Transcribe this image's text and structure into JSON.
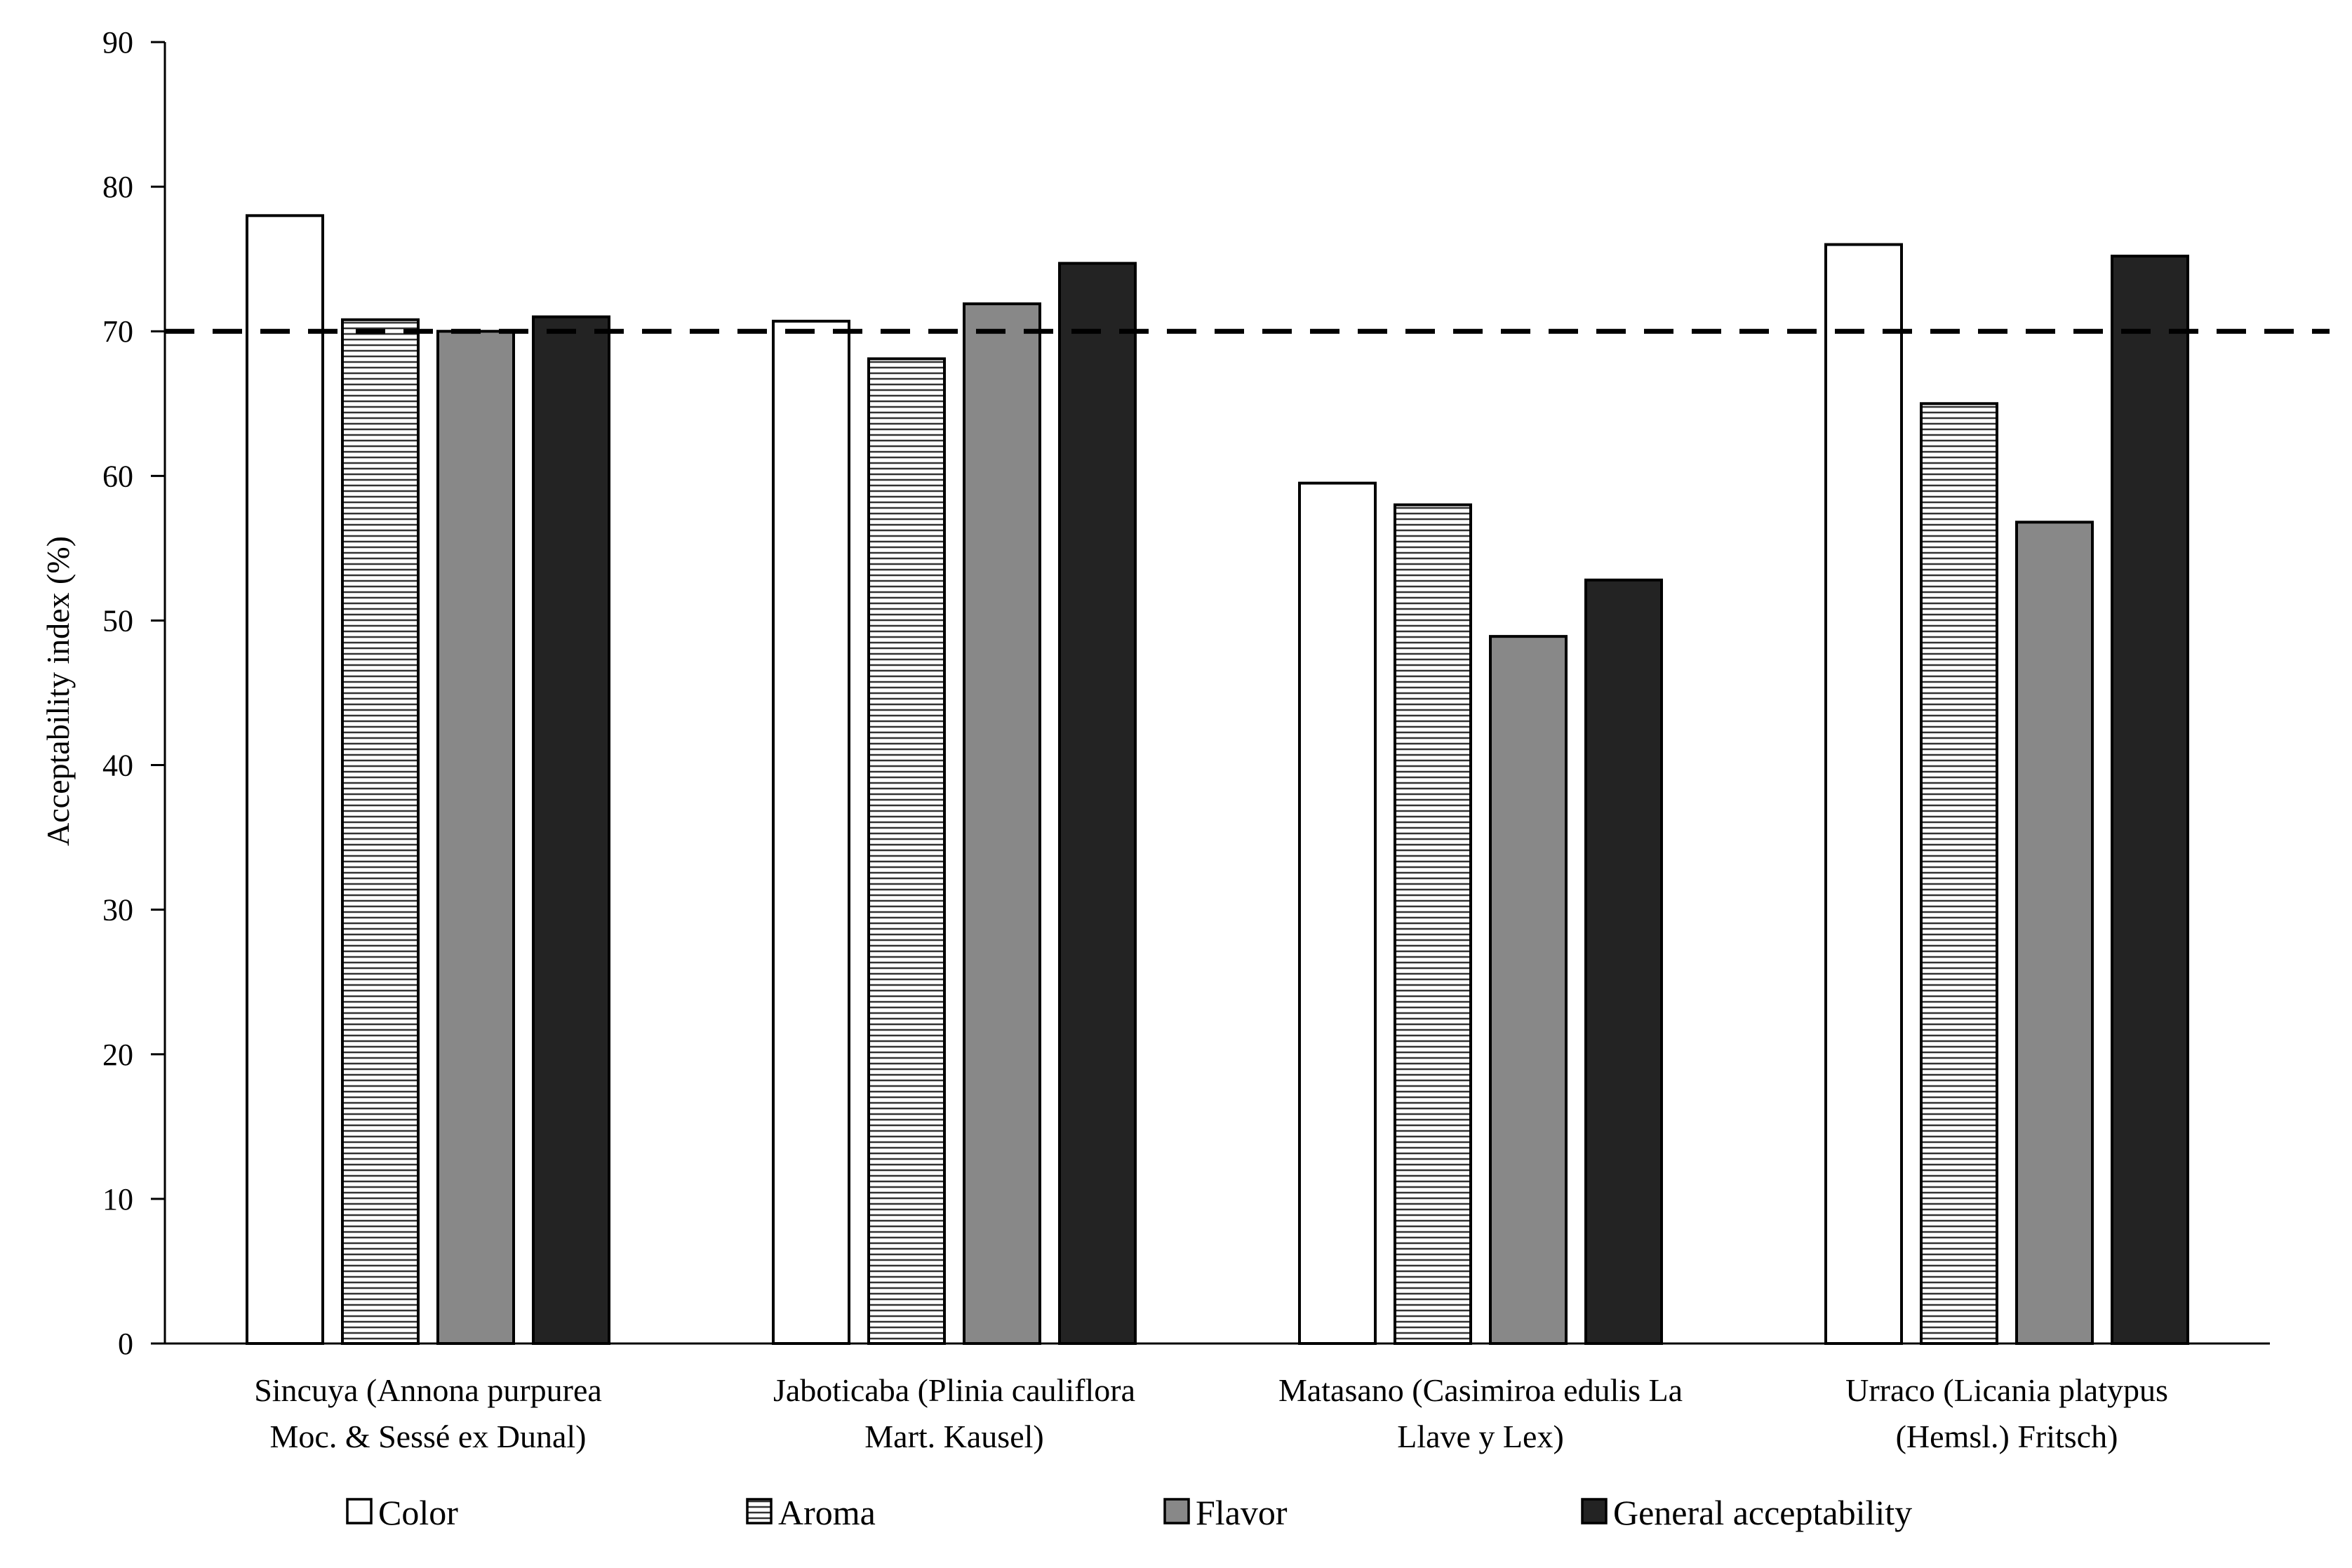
{
  "chart_data": {
    "type": "bar",
    "title": "",
    "xlabel": "",
    "ylabel": "Acceptability index (%)",
    "ylim": [
      0,
      90
    ],
    "yticks": [
      0,
      10,
      20,
      30,
      40,
      50,
      60,
      70,
      80,
      90
    ],
    "reference_line": {
      "value": 70,
      "style": "dashed"
    },
    "categories": [
      [
        "Sincuya (Annona purpurea",
        "Moc. & Sessé ex Dunal)"
      ],
      [
        "Jaboticaba (Plinia cauliflora",
        "Mart. Kausel)"
      ],
      [
        "Matasano (Casimiroa edulis La",
        "Llave y Lex)"
      ],
      [
        "Urraco (Licania platypus",
        "(Hemsl.) Fritsch)"
      ]
    ],
    "series": [
      {
        "name": "Color",
        "values": [
          78,
          70.7,
          59.5,
          76
        ],
        "fill": "#ffffff",
        "pattern": "none"
      },
      {
        "name": "Aroma",
        "values": [
          70.8,
          68.1,
          58,
          65
        ],
        "fill": "#ffffff",
        "pattern": "horizontal-lines"
      },
      {
        "name": "Flavor",
        "values": [
          70,
          71.9,
          48.9,
          56.8
        ],
        "fill": "#888888",
        "pattern": "none"
      },
      {
        "name": "General acceptability",
        "values": [
          71,
          74.7,
          52.8,
          75.2
        ],
        "fill": "#232323",
        "pattern": "none"
      }
    ],
    "grid": false,
    "legend_position": "bottom"
  }
}
